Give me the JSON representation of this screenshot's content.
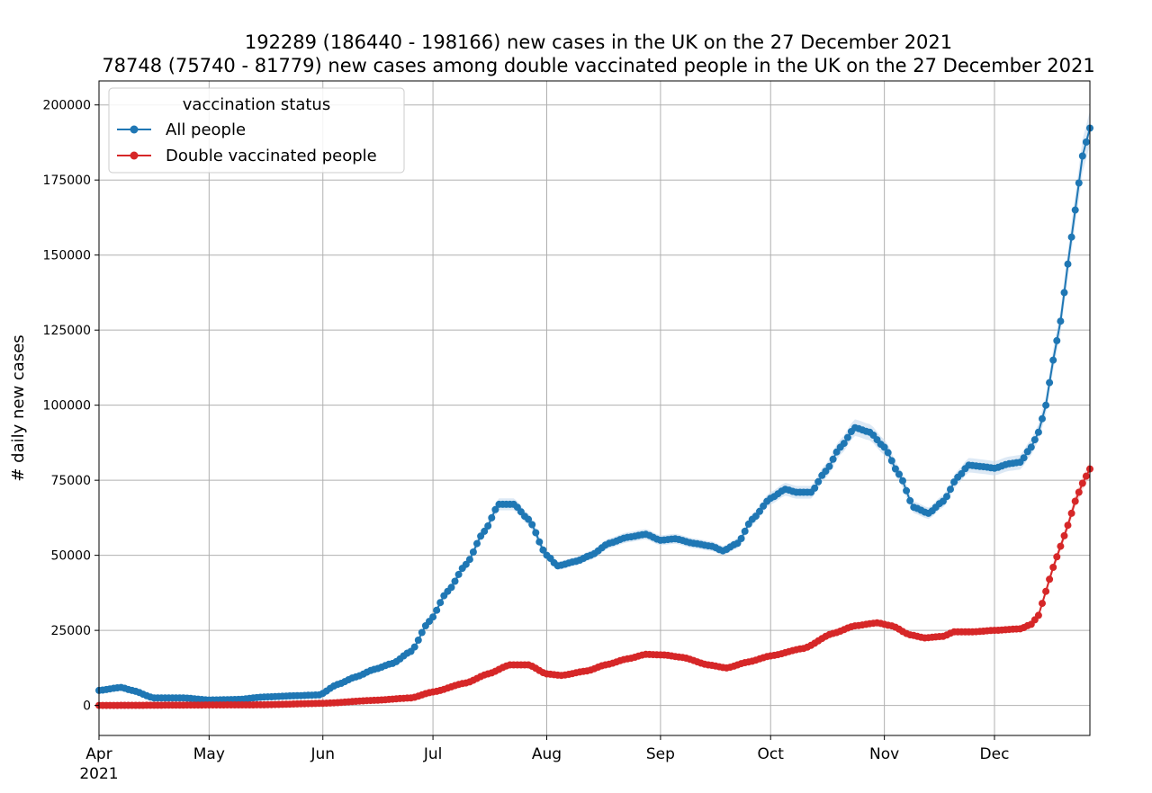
{
  "chart_data": {
    "type": "line",
    "title_lines": [
      "192289 (186440 - 198166) new cases in the UK on the 27 December 2021",
      "78748 (75740 - 81779) new cases among double vaccinated people in the UK on the 27 December 2021"
    ],
    "ylabel": "# daily new cases",
    "xlabel": "",
    "x_start": "2021-04-01",
    "x_end": "2021-12-27",
    "xlim": [
      "2021-04-01",
      "2021-12-27"
    ],
    "ylim": [
      -10000,
      208000
    ],
    "y_ticks": [
      0,
      25000,
      50000,
      75000,
      100000,
      125000,
      150000,
      175000,
      200000
    ],
    "y_tick_labels": [
      "0",
      "25000",
      "50000",
      "75000",
      "100000",
      "125000",
      "150000",
      "175000",
      "200000"
    ],
    "x_ticks": [
      {
        "date": "2021-04-01",
        "label": "Apr",
        "sublabel": "2021"
      },
      {
        "date": "2021-05-01",
        "label": "May"
      },
      {
        "date": "2021-06-01",
        "label": "Jun"
      },
      {
        "date": "2021-07-01",
        "label": "Jul"
      },
      {
        "date": "2021-08-01",
        "label": "Aug"
      },
      {
        "date": "2021-09-01",
        "label": "Sep"
      },
      {
        "date": "2021-10-01",
        "label": "Oct"
      },
      {
        "date": "2021-11-01",
        "label": "Nov"
      },
      {
        "date": "2021-12-01",
        "label": "Dec"
      }
    ],
    "grid": true,
    "legend": {
      "title": "vaccination status",
      "position": "top-left"
    },
    "series": [
      {
        "name": "All people",
        "color": "#1f77b4",
        "band_color": "#c6dbef",
        "keypoints": [
          [
            "2021-04-01",
            5000
          ],
          [
            "2021-04-07",
            6000
          ],
          [
            "2021-04-10",
            5000
          ],
          [
            "2021-04-16",
            2500
          ],
          [
            "2021-04-24",
            2500
          ],
          [
            "2021-05-01",
            1800
          ],
          [
            "2021-05-09",
            2000
          ],
          [
            "2021-05-16",
            2800
          ],
          [
            "2021-05-24",
            3200
          ],
          [
            "2021-05-31",
            3500
          ],
          [
            "2021-06-05",
            7000
          ],
          [
            "2021-06-10",
            9500
          ],
          [
            "2021-06-15",
            12000
          ],
          [
            "2021-06-20",
            14000
          ],
          [
            "2021-06-25",
            18000
          ],
          [
            "2021-06-30",
            28000
          ],
          [
            "2021-07-05",
            38000
          ],
          [
            "2021-07-10",
            47000
          ],
          [
            "2021-07-15",
            58000
          ],
          [
            "2021-07-19",
            67000
          ],
          [
            "2021-07-23",
            67000
          ],
          [
            "2021-07-27",
            62000
          ],
          [
            "2021-08-01",
            50000
          ],
          [
            "2021-08-04",
            46500
          ],
          [
            "2021-08-09",
            48000
          ],
          [
            "2021-08-13",
            50000
          ],
          [
            "2021-08-18",
            54000
          ],
          [
            "2021-08-23",
            56000
          ],
          [
            "2021-08-28",
            57000
          ],
          [
            "2021-09-01",
            55000
          ],
          [
            "2021-09-05",
            55500
          ],
          [
            "2021-09-10",
            54000
          ],
          [
            "2021-09-15",
            53000
          ],
          [
            "2021-09-18",
            51500
          ],
          [
            "2021-09-22",
            54000
          ],
          [
            "2021-09-26",
            62000
          ],
          [
            "2021-10-01",
            69000
          ],
          [
            "2021-10-05",
            72000
          ],
          [
            "2021-10-08",
            71000
          ],
          [
            "2021-10-12",
            71000
          ],
          [
            "2021-10-16",
            78000
          ],
          [
            "2021-10-20",
            86000
          ],
          [
            "2021-10-24",
            92500
          ],
          [
            "2021-10-28",
            91000
          ],
          [
            "2021-11-01",
            86000
          ],
          [
            "2021-11-05",
            77000
          ],
          [
            "2021-11-09",
            66000
          ],
          [
            "2021-11-13",
            64000
          ],
          [
            "2021-11-17",
            68000
          ],
          [
            "2021-11-21",
            76000
          ],
          [
            "2021-11-24",
            80000
          ],
          [
            "2021-11-28",
            79500
          ],
          [
            "2021-12-01",
            79000
          ],
          [
            "2021-12-05",
            80500
          ],
          [
            "2021-12-08",
            81000
          ],
          [
            "2021-12-11",
            86000
          ],
          [
            "2021-12-13",
            91000
          ],
          [
            "2021-12-15",
            100000
          ],
          [
            "2021-12-17",
            115000
          ],
          [
            "2021-12-19",
            128000
          ],
          [
            "2021-12-21",
            147000
          ],
          [
            "2021-12-23",
            165000
          ],
          [
            "2021-12-25",
            183000
          ],
          [
            "2021-12-27",
            192289
          ]
        ]
      },
      {
        "name": "Double vaccinated people",
        "color": "#d62728",
        "band_color": "#f4c4c4",
        "keypoints": [
          [
            "2021-04-01",
            0
          ],
          [
            "2021-05-15",
            200
          ],
          [
            "2021-06-01",
            700
          ],
          [
            "2021-06-15",
            1700
          ],
          [
            "2021-06-25",
            2500
          ],
          [
            "2021-07-01",
            4500
          ],
          [
            "2021-07-10",
            7500
          ],
          [
            "2021-07-16",
            10500
          ],
          [
            "2021-07-22",
            13500
          ],
          [
            "2021-07-27",
            13500
          ],
          [
            "2021-08-01",
            10500
          ],
          [
            "2021-08-05",
            10000
          ],
          [
            "2021-08-12",
            11500
          ],
          [
            "2021-08-17",
            13500
          ],
          [
            "2021-08-23",
            15500
          ],
          [
            "2021-08-28",
            17000
          ],
          [
            "2021-09-02",
            16800
          ],
          [
            "2021-09-07",
            16000
          ],
          [
            "2021-09-14",
            13500
          ],
          [
            "2021-09-19",
            12500
          ],
          [
            "2021-09-25",
            14500
          ],
          [
            "2021-10-01",
            16500
          ],
          [
            "2021-10-10",
            19000
          ],
          [
            "2021-10-18",
            24000
          ],
          [
            "2021-10-24",
            26500
          ],
          [
            "2021-10-30",
            27500
          ],
          [
            "2021-11-03",
            26500
          ],
          [
            "2021-11-08",
            23500
          ],
          [
            "2021-11-12",
            22500
          ],
          [
            "2021-11-17",
            23000
          ],
          [
            "2021-11-20",
            24500
          ],
          [
            "2021-11-25",
            24500
          ],
          [
            "2021-12-01",
            25000
          ],
          [
            "2021-12-08",
            25500
          ],
          [
            "2021-12-11",
            27000
          ],
          [
            "2021-12-13",
            30000
          ],
          [
            "2021-12-15",
            38000
          ],
          [
            "2021-12-17",
            46000
          ],
          [
            "2021-12-19",
            53000
          ],
          [
            "2021-12-21",
            60000
          ],
          [
            "2021-12-23",
            68000
          ],
          [
            "2021-12-25",
            74000
          ],
          [
            "2021-12-27",
            78748
          ]
        ]
      }
    ]
  }
}
